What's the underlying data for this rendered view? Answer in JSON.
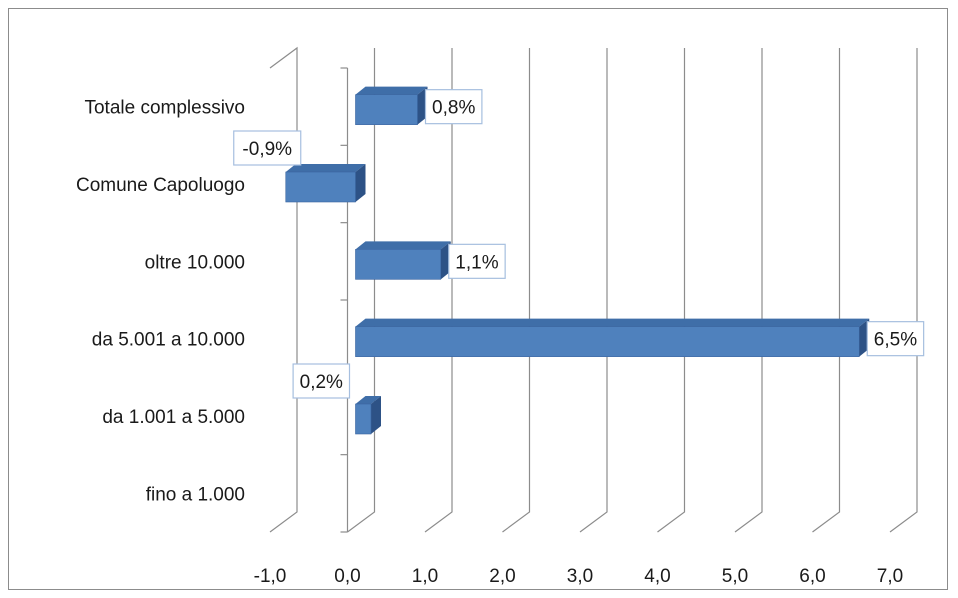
{
  "chart_data": {
    "type": "bar",
    "orientation": "horizontal",
    "style": "3d-clustered",
    "categories": [
      "fino a 1.000",
      "da 1.001 a 5.000",
      "da 5.001 a 10.000",
      "oltre 10.000",
      "Comune Capoluogo",
      "Totale complessivo"
    ],
    "values": [
      null,
      0.2,
      6.5,
      1.1,
      -0.9,
      0.8
    ],
    "data_labels": [
      "",
      "0,2%",
      "6,5%",
      "1,1%",
      "-0,9%",
      "0,8%"
    ],
    "xlim": [
      -1.0,
      7.0
    ],
    "xticks": [
      -1.0,
      0.0,
      1.0,
      2.0,
      3.0,
      4.0,
      5.0,
      6.0,
      7.0
    ],
    "xtick_labels": [
      "-1,0",
      "0,0",
      "1,0",
      "2,0",
      "3,0",
      "4,0",
      "5,0",
      "6,0",
      "7,0"
    ],
    "title": "",
    "xlabel": "",
    "ylabel": "",
    "grid": "vertical",
    "legend": "none",
    "bar_color": "#4f81bd",
    "bar_top_color": "#3f6ea8",
    "bar_side_color": "#2d5286",
    "label_border_color": "#a6bfdf"
  }
}
